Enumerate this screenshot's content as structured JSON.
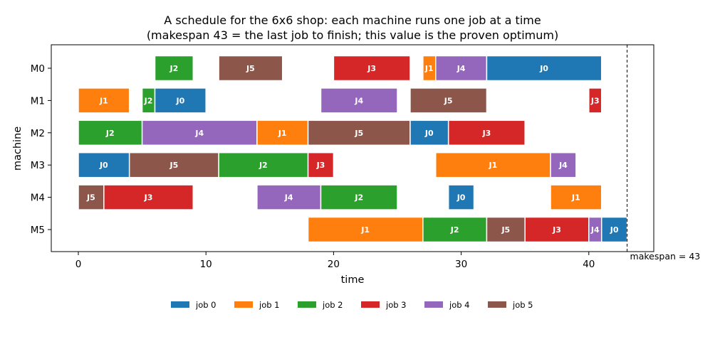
{
  "chart_data": {
    "type": "gantt",
    "title_line1": "A schedule for the 6x6 shop: each machine runs one job at a time",
    "title_line2": "(makespan 43 = the last job to finish; this value is the proven optimum)",
    "xlabel": "time",
    "ylabel": "machine",
    "xlim": [
      -2,
      45
    ],
    "xticks": [
      0,
      10,
      20,
      30,
      40
    ],
    "machines": [
      "M0",
      "M1",
      "M2",
      "M3",
      "M4",
      "M5"
    ],
    "job_colors": [
      "#1f77b4",
      "#ff7f0e",
      "#2ca02c",
      "#d62728",
      "#9467bd",
      "#8c564b"
    ],
    "legend": [
      "job 0",
      "job 1",
      "job 2",
      "job 3",
      "job 4",
      "job 5"
    ],
    "legend_position": "bottom-center",
    "makespan": 43,
    "makespan_label": "makespan = 43",
    "tasks": [
      {
        "machine": 0,
        "job": 2,
        "label": "J2",
        "start": 6,
        "end": 9
      },
      {
        "machine": 0,
        "job": 5,
        "label": "J5",
        "start": 11,
        "end": 16
      },
      {
        "machine": 0,
        "job": 3,
        "label": "J3",
        "start": 20,
        "end": 26
      },
      {
        "machine": 0,
        "job": 1,
        "label": "J1",
        "start": 27,
        "end": 28
      },
      {
        "machine": 0,
        "job": 4,
        "label": "J4",
        "start": 28,
        "end": 32
      },
      {
        "machine": 0,
        "job": 0,
        "label": "J0",
        "start": 32,
        "end": 41
      },
      {
        "machine": 1,
        "job": 1,
        "label": "J1",
        "start": 0,
        "end": 4
      },
      {
        "machine": 1,
        "job": 2,
        "label": "J2",
        "start": 5,
        "end": 6
      },
      {
        "machine": 1,
        "job": 0,
        "label": "J0",
        "start": 6,
        "end": 10
      },
      {
        "machine": 1,
        "job": 4,
        "label": "J4",
        "start": 19,
        "end": 25
      },
      {
        "machine": 1,
        "job": 5,
        "label": "J5",
        "start": 26,
        "end": 32
      },
      {
        "machine": 1,
        "job": 3,
        "label": "J3",
        "start": 40,
        "end": 41
      },
      {
        "machine": 2,
        "job": 2,
        "label": "J2",
        "start": 0,
        "end": 5
      },
      {
        "machine": 2,
        "job": 4,
        "label": "J4",
        "start": 5,
        "end": 14
      },
      {
        "machine": 2,
        "job": 1,
        "label": "J1",
        "start": 14,
        "end": 18
      },
      {
        "machine": 2,
        "job": 5,
        "label": "J5",
        "start": 18,
        "end": 26
      },
      {
        "machine": 2,
        "job": 0,
        "label": "J0",
        "start": 26,
        "end": 29
      },
      {
        "machine": 2,
        "job": 3,
        "label": "J3",
        "start": 29,
        "end": 35
      },
      {
        "machine": 3,
        "job": 0,
        "label": "J0",
        "start": 0,
        "end": 4
      },
      {
        "machine": 3,
        "job": 5,
        "label": "J5",
        "start": 4,
        "end": 11
      },
      {
        "machine": 3,
        "job": 2,
        "label": "J2",
        "start": 11,
        "end": 18
      },
      {
        "machine": 3,
        "job": 3,
        "label": "J3",
        "start": 18,
        "end": 20
      },
      {
        "machine": 3,
        "job": 1,
        "label": "J1",
        "start": 28,
        "end": 37
      },
      {
        "machine": 3,
        "job": 4,
        "label": "J4",
        "start": 37,
        "end": 39
      },
      {
        "machine": 4,
        "job": 5,
        "label": "J5",
        "start": 0,
        "end": 2
      },
      {
        "machine": 4,
        "job": 3,
        "label": "J3",
        "start": 2,
        "end": 9
      },
      {
        "machine": 4,
        "job": 4,
        "label": "J4",
        "start": 14,
        "end": 19
      },
      {
        "machine": 4,
        "job": 2,
        "label": "J2",
        "start": 19,
        "end": 25
      },
      {
        "machine": 4,
        "job": 0,
        "label": "J0",
        "start": 29,
        "end": 31
      },
      {
        "machine": 4,
        "job": 1,
        "label": "J1",
        "start": 37,
        "end": 41
      },
      {
        "machine": 5,
        "job": 1,
        "label": "J1",
        "start": 18,
        "end": 27
      },
      {
        "machine": 5,
        "job": 2,
        "label": "J2",
        "start": 27,
        "end": 32
      },
      {
        "machine": 5,
        "job": 5,
        "label": "J5",
        "start": 32,
        "end": 35
      },
      {
        "machine": 5,
        "job": 3,
        "label": "J3",
        "start": 35,
        "end": 40
      },
      {
        "machine": 5,
        "job": 4,
        "label": "J4",
        "start": 40,
        "end": 41
      },
      {
        "machine": 5,
        "job": 0,
        "label": "J0",
        "start": 41,
        "end": 43
      }
    ]
  }
}
